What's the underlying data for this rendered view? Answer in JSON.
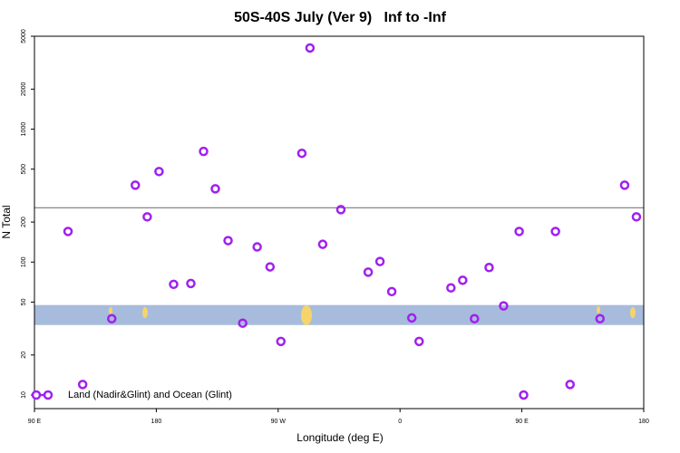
{
  "chart_data": {
    "type": "scatter",
    "title": "50S-40S July (Ver 9)   Inf to -Inf",
    "x_label": "Longitude (deg E)",
    "y_label": "N Total",
    "log_y": true,
    "xlim": [
      90,
      540
    ],
    "ylim": [
      7.9,
      5000
    ],
    "xticks": [
      {
        "value": 90,
        "label": "90 E"
      },
      {
        "value": 180,
        "label": "180"
      },
      {
        "value": 270,
        "label": "90 W"
      },
      {
        "value": 360,
        "label": "0"
      },
      {
        "value": 450,
        "label": "90 E"
      },
      {
        "value": 540,
        "label": "180"
      }
    ],
    "yticks": [
      10,
      20,
      50,
      100,
      200,
      500,
      1000,
      2000,
      5000
    ],
    "reference_line": 256,
    "reference_line_color": "#888888",
    "band": [
      33.6,
      47.5
    ],
    "band_color": "#a7bcdc",
    "legend_position": "lower left",
    "series": [
      {
        "name": "Land (Nadir&Glint) and Ocean (Glint)",
        "color": "#a020f0",
        "x": [
          114.8,
          125.6,
          147.1,
          164.5,
          173.3,
          182,
          192.8,
          205.5,
          214.9,
          223.6,
          233,
          243.8,
          254.5,
          264,
          272,
          287.5,
          293.5,
          302.9,
          316.3,
          336.5,
          345.2,
          353.9,
          368.7,
          374.1,
          397.6,
          406.3,
          415,
          425.8,
          436.5,
          448,
          451.3,
          474.8,
          485.6,
          507.7,
          525.9,
          534.6
        ],
        "values": [
          170,
          12,
          37.5,
          379,
          219,
          480,
          68,
          69,
          680,
          356,
          145,
          34.7,
          130,
          92,
          25.3,
          658,
          4080,
          136,
          248,
          84,
          101,
          60,
          38,
          25.3,
          64,
          73,
          37.5,
          91,
          46.8,
          170,
          10,
          170,
          12,
          37.5,
          379,
          219
        ]
      }
    ]
  }
}
